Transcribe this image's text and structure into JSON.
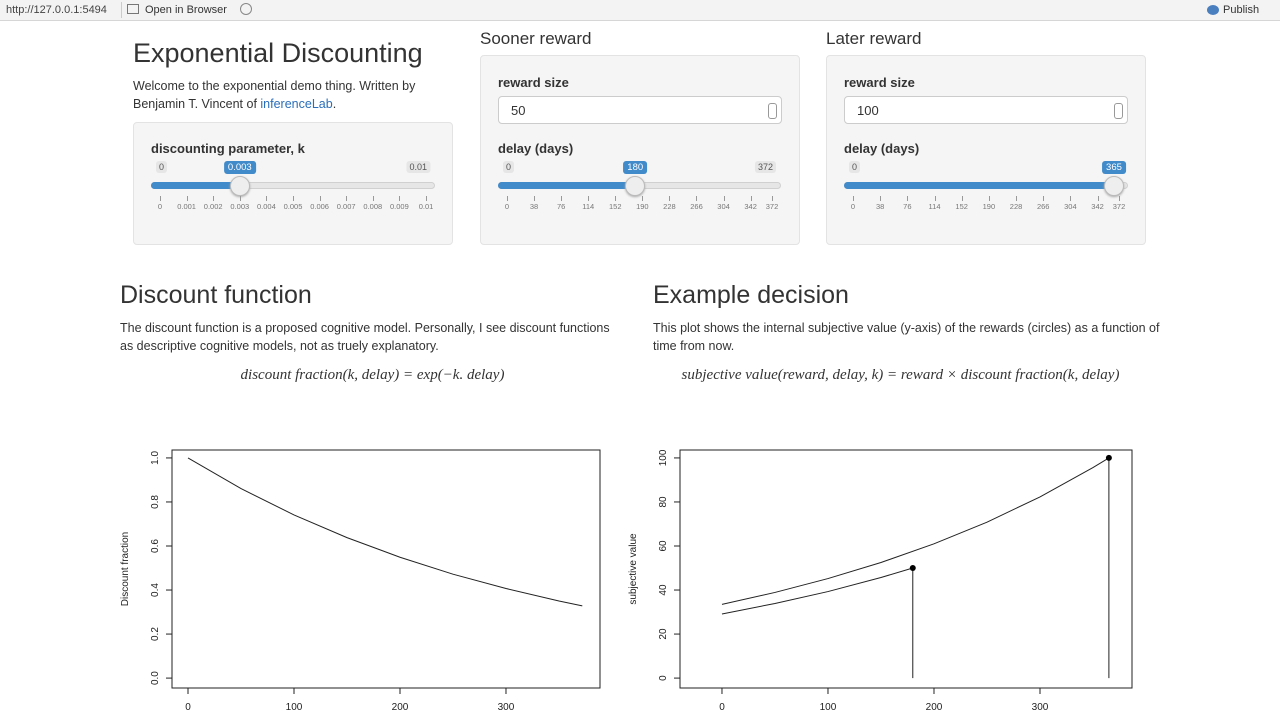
{
  "browser_bar": {
    "url": "http://127.0.0.1:5494",
    "open_in_browser": "Open in Browser",
    "publish": "Publish"
  },
  "header": {
    "title": "Exponential Discounting",
    "intro": "Welcome to the exponential demo thing. Written by Benjamin T. Vincent of",
    "link": "inferenceLab",
    "intro_end": "."
  },
  "k_panel": {
    "label": "discounting parameter, k",
    "slider": {
      "min": 0,
      "max": 0.01,
      "value": 0.003,
      "ticks": [
        0,
        0.001,
        0.002,
        0.003,
        0.004,
        0.005,
        0.006,
        0.007,
        0.008,
        0.009,
        0.01
      ]
    }
  },
  "sooner": {
    "title": "Sooner reward",
    "size_label": "reward size",
    "size": 50,
    "delay_label": "delay (days)",
    "slider": {
      "min": 0,
      "max": 372,
      "value": 180,
      "ticks": [
        0,
        38,
        76,
        114,
        152,
        190,
        228,
        266,
        304,
        342,
        372
      ]
    }
  },
  "later": {
    "title": "Later reward",
    "size_label": "reward size",
    "size": 100,
    "delay_label": "delay (days)",
    "slider": {
      "min": 0,
      "max": 372,
      "value": 365,
      "ticks": [
        0,
        38,
        76,
        114,
        152,
        190,
        228,
        266,
        304,
        342,
        372
      ]
    }
  },
  "discount_section": {
    "title": "Discount function",
    "text": "The discount function is a proposed cognitive model. Personally, I see discount functions as descriptive cognitive models, not as truely explanatory.",
    "formula": "discount fraction(k, delay) = exp(−k. delay)"
  },
  "decision_section": {
    "title": "Example decision",
    "text": "This plot shows the internal subjective value (y-axis) of the rewards (circles) as a function of time from now.",
    "formula": "subjective value(reward, delay, k) = reward × discount fraction(k, delay)"
  },
  "discount_plot": {
    "type": "line",
    "y_label": "Discount fraction",
    "color": "#222222",
    "x": [
      0,
      50,
      100,
      150,
      200,
      250,
      300,
      350,
      372
    ],
    "values": [
      1,
      0.861,
      0.741,
      0.638,
      0.549,
      0.472,
      0.407,
      0.35,
      0.328
    ],
    "xlim": [
      -15.1,
      388.7
    ],
    "ylim": [
      -0.045,
      1.036
    ],
    "xticks": [
      0,
      100,
      200,
      300
    ],
    "yticks": [
      {
        "value": 0,
        "label": "0.0"
      },
      0.2,
      0.4,
      0.6,
      0.8,
      {
        "value": 1,
        "label": "1.0"
      }
    ]
  },
  "decision_plot": {
    "type": "line",
    "y_label": "subjective value",
    "color": "#222222",
    "series": [
      {
        "x": [
          0,
          50,
          100,
          150,
          200,
          250,
          300,
          350,
          365
        ],
        "values": [
          33.5,
          38.9,
          45.2,
          52.5,
          61,
          70.8,
          82.3,
          95.6,
          100
        ]
      },
      {
        "x": [
          0,
          50,
          100,
          150,
          180
        ],
        "values": [
          29.1,
          33.9,
          39.3,
          45.7,
          50
        ]
      }
    ],
    "points": {
      "x": [
        180,
        365
      ],
      "values": [
        50,
        100
      ]
    },
    "xlim": [
      -39.6,
      386.8
    ],
    "ylim": [
      -4.5,
      103.6
    ],
    "xticks": [
      0,
      100,
      200,
      300
    ],
    "yticks": [
      0,
      20,
      40,
      60,
      80,
      100
    ]
  }
}
